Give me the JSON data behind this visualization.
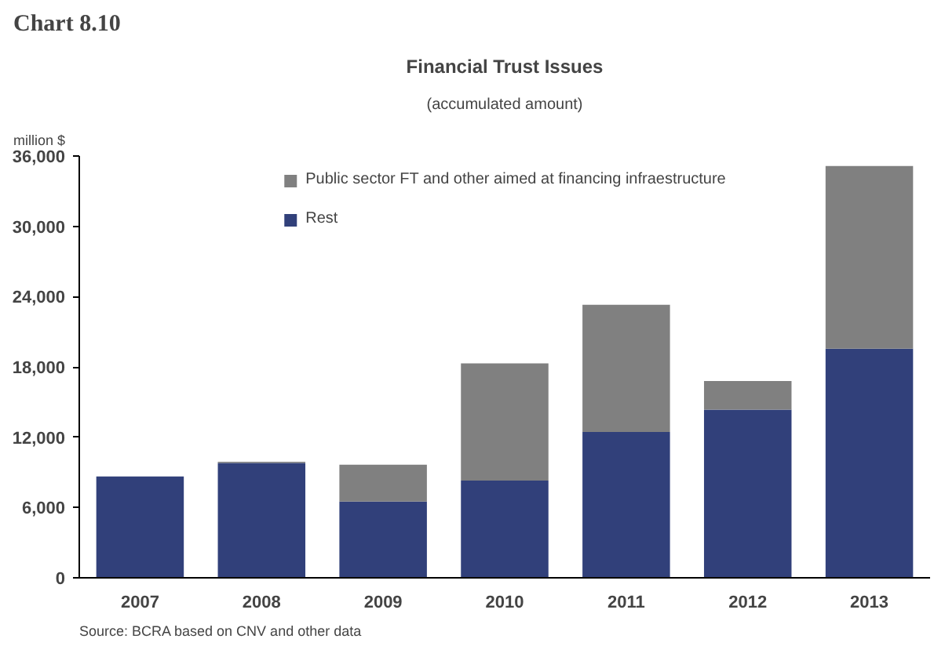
{
  "chart_data": {
    "type": "bar",
    "title": "Financial Trust Issues",
    "subtitle": "(accumulated amount)",
    "ylabel": "million $",
    "annotations": [
      "Chart 8.10",
      "Source: BCRA based on  CNV and other data"
    ],
    "categories": [
      "2007",
      "2008",
      "2009",
      "2010",
      "2011",
      "2012",
      "2013"
    ],
    "stacked": true,
    "series": [
      {
        "name": "Rest",
        "color": "#31407a",
        "values": [
          8650,
          9800,
          6500,
          8300,
          12450,
          14350,
          19550
        ]
      },
      {
        "name": "Public sector FT and other aimed at financing infraestructure",
        "color": "#808080",
        "values": [
          0,
          100,
          3150,
          10000,
          10850,
          2450,
          15600
        ]
      }
    ],
    "ylim": [
      0,
      36000
    ],
    "yticks": [
      0,
      {
        "value": 6000,
        "label": "6,000"
      },
      {
        "value": 12000,
        "label": "12,000"
      },
      {
        "value": 18000,
        "label": "18,000"
      },
      {
        "value": 24000,
        "label": "24,000"
      },
      {
        "value": 30000,
        "label": "30,000"
      },
      {
        "value": 36000,
        "label": "36,000"
      }
    ],
    "legend": "top",
    "grid": false
  }
}
